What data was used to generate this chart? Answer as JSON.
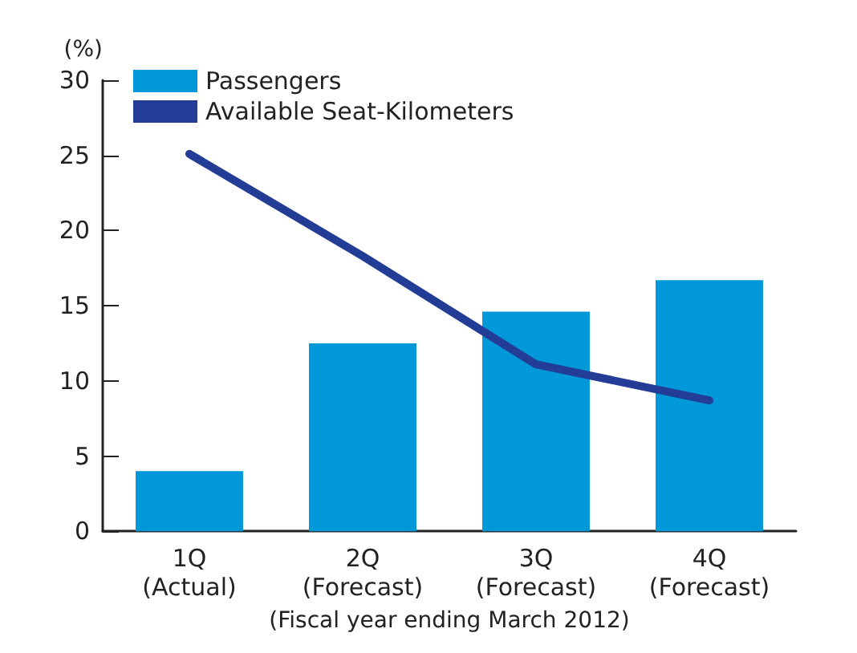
{
  "chart_data": {
    "type": "bar",
    "ylabel": "(%)",
    "xlabel": "(Fiscal year ending March 2012)",
    "categories": [
      "1Q\n(Actual)",
      "2Q\n(Forecast)",
      "3Q\n(Forecast)",
      "4Q\n(Forecast)"
    ],
    "series": [
      {
        "name": "Passengers",
        "color": "#0098d8",
        "values": [
          4.0,
          12.5,
          14.6,
          16.7
        ]
      },
      {
        "name": "Available Seat-Kilometers",
        "type": "line",
        "color": "#233c96",
        "values": [
          25.1,
          18.3,
          11.1,
          8.7
        ]
      }
    ],
    "ylim": [
      0,
      30
    ],
    "yticks": [
      0,
      5,
      10,
      15,
      20,
      25,
      30
    ],
    "grid": false,
    "legend": "top left",
    "marker": "none",
    "line_style": "solid"
  }
}
